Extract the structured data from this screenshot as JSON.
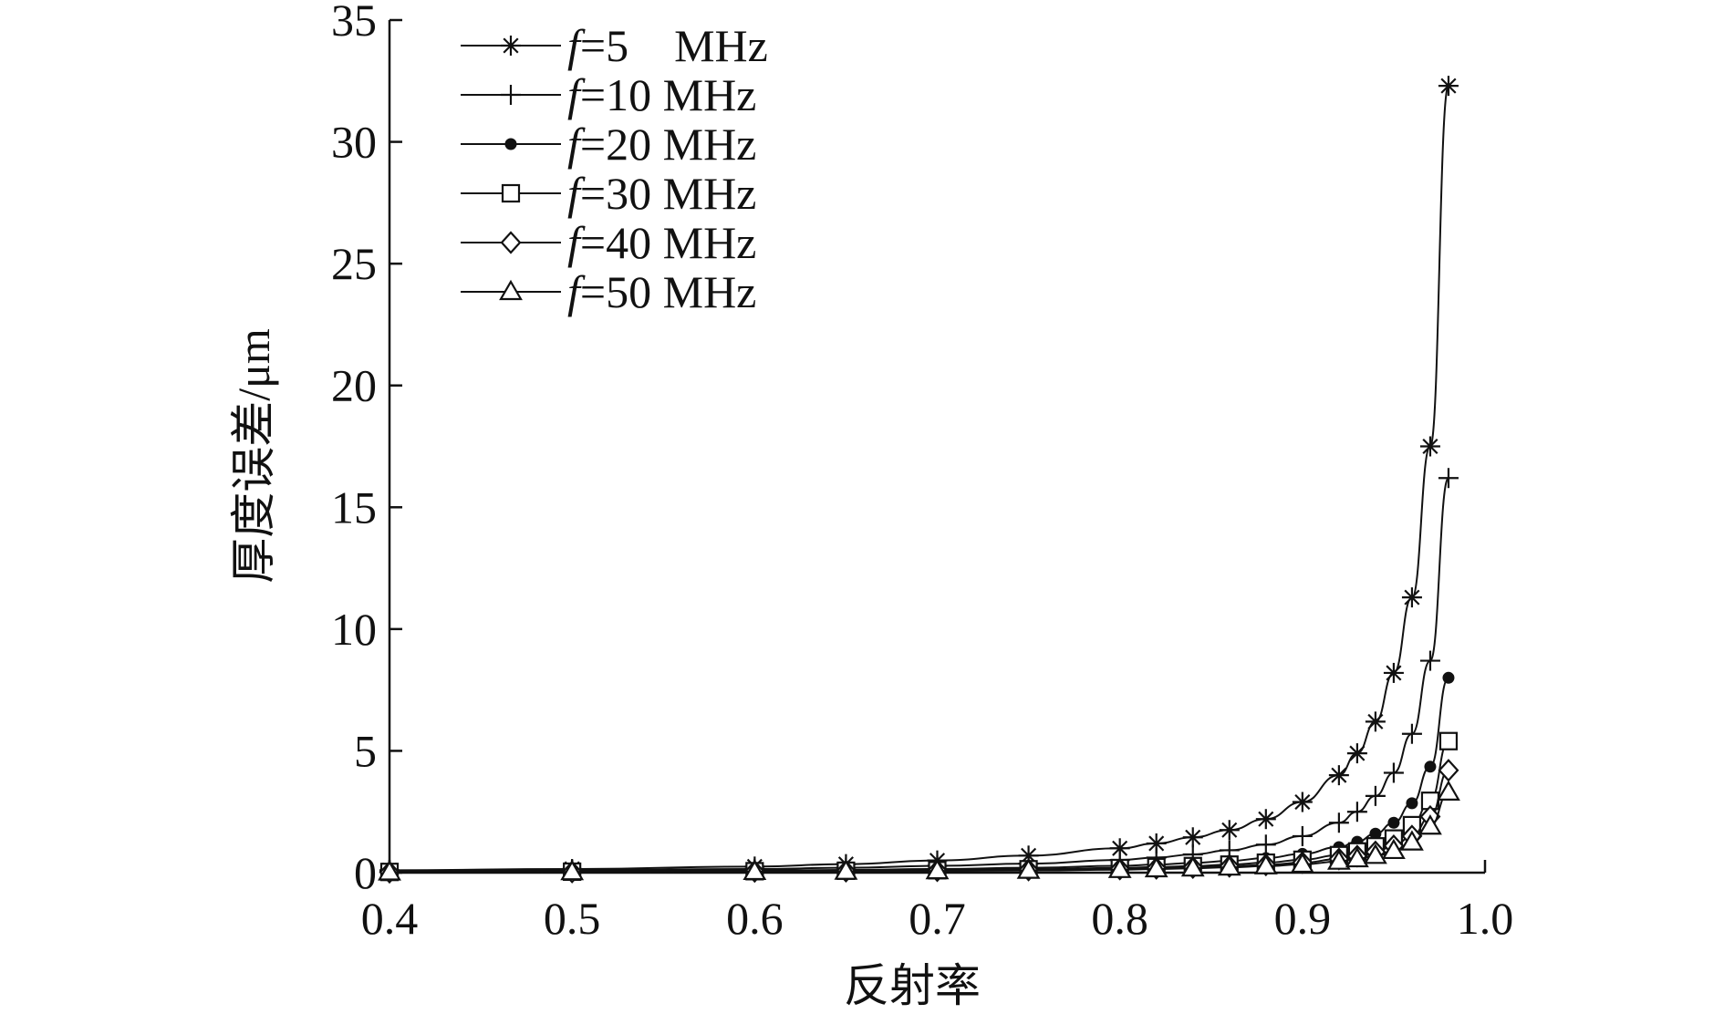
{
  "chart_data": {
    "type": "line",
    "title": "",
    "xlabel": "反射率",
    "ylabel": "厚度误差/μm",
    "xlim": [
      0.4,
      1.0
    ],
    "ylim": [
      0,
      35
    ],
    "xticks": [
      "0.4",
      "0.5",
      "0.6",
      "0.7",
      "0.8",
      "0.9",
      "1.0"
    ],
    "yticks": [
      "0",
      "5",
      "10",
      "15",
      "20",
      "25",
      "30",
      "35"
    ],
    "legend_position": "top-left",
    "grid": false,
    "series": [
      {
        "name_prefix": "f",
        "name_suffix": "=5　MHz",
        "marker": "asterisk",
        "x": [
          0.4,
          0.5,
          0.6,
          0.65,
          0.7,
          0.75,
          0.8,
          0.82,
          0.84,
          0.86,
          0.88,
          0.9,
          0.92,
          0.93,
          0.94,
          0.95,
          0.96,
          0.97,
          0.98
        ],
        "y": [
          0.1,
          0.15,
          0.25,
          0.35,
          0.5,
          0.7,
          1.0,
          1.2,
          1.45,
          1.75,
          2.2,
          2.9,
          4.0,
          4.9,
          6.2,
          8.2,
          11.3,
          17.5,
          32.3
        ]
      },
      {
        "name_prefix": "f",
        "name_suffix": "=10 MHz",
        "marker": "plus",
        "x": [
          0.4,
          0.5,
          0.6,
          0.65,
          0.7,
          0.75,
          0.8,
          0.82,
          0.84,
          0.86,
          0.88,
          0.9,
          0.92,
          0.93,
          0.94,
          0.95,
          0.96,
          0.97,
          0.98
        ],
        "y": [
          0.07,
          0.1,
          0.15,
          0.2,
          0.28,
          0.37,
          0.52,
          0.62,
          0.75,
          0.92,
          1.15,
          1.5,
          2.05,
          2.5,
          3.15,
          4.1,
          5.7,
          8.7,
          16.2
        ]
      },
      {
        "name_prefix": "f",
        "name_suffix": "=20 MHz",
        "marker": "dot",
        "x": [
          0.4,
          0.5,
          0.6,
          0.65,
          0.7,
          0.75,
          0.8,
          0.82,
          0.84,
          0.86,
          0.88,
          0.9,
          0.92,
          0.93,
          0.94,
          0.95,
          0.96,
          0.97,
          0.98
        ],
        "y": [
          0.04,
          0.06,
          0.09,
          0.11,
          0.15,
          0.2,
          0.28,
          0.33,
          0.4,
          0.48,
          0.6,
          0.77,
          1.05,
          1.27,
          1.6,
          2.05,
          2.85,
          4.35,
          8.0
        ]
      },
      {
        "name_prefix": "f",
        "name_suffix": "=30 MHz",
        "marker": "square",
        "x": [
          0.4,
          0.5,
          0.6,
          0.65,
          0.7,
          0.75,
          0.8,
          0.82,
          0.84,
          0.86,
          0.88,
          0.9,
          0.92,
          0.93,
          0.94,
          0.95,
          0.96,
          0.97,
          0.98
        ],
        "y": [
          0.03,
          0.04,
          0.06,
          0.08,
          0.1,
          0.14,
          0.19,
          0.23,
          0.27,
          0.33,
          0.41,
          0.53,
          0.72,
          0.87,
          1.08,
          1.4,
          1.95,
          2.95,
          5.4
        ]
      },
      {
        "name_prefix": "f",
        "name_suffix": "=40 MHz",
        "marker": "diamond",
        "x": [
          0.4,
          0.5,
          0.6,
          0.65,
          0.7,
          0.75,
          0.8,
          0.82,
          0.84,
          0.86,
          0.88,
          0.9,
          0.92,
          0.93,
          0.94,
          0.95,
          0.96,
          0.97,
          0.98
        ],
        "y": [
          0.02,
          0.03,
          0.05,
          0.06,
          0.08,
          0.11,
          0.15,
          0.18,
          0.21,
          0.26,
          0.32,
          0.41,
          0.56,
          0.68,
          0.85,
          1.1,
          1.5,
          2.3,
          4.2
        ]
      },
      {
        "name_prefix": "f",
        "name_suffix": "=50 MHz",
        "marker": "triangle",
        "x": [
          0.4,
          0.5,
          0.6,
          0.65,
          0.7,
          0.75,
          0.8,
          0.82,
          0.84,
          0.86,
          0.88,
          0.9,
          0.92,
          0.93,
          0.94,
          0.95,
          0.96,
          0.97,
          0.98
        ],
        "y": [
          0.02,
          0.03,
          0.04,
          0.05,
          0.07,
          0.09,
          0.12,
          0.15,
          0.18,
          0.22,
          0.27,
          0.34,
          0.46,
          0.56,
          0.7,
          0.9,
          1.25,
          1.9,
          3.3
        ]
      }
    ]
  }
}
